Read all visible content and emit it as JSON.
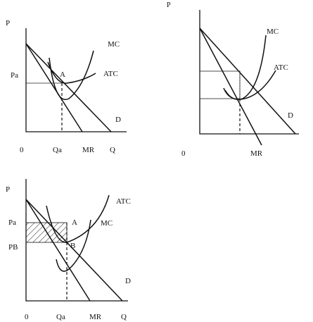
{
  "diagram1": {
    "y_axis": "P",
    "x_axis": "Q",
    "origin": "0",
    "price_label": "Pa",
    "quantity_label": "Qa",
    "point_label": "A",
    "curves": {
      "mc": "MC",
      "atc": "ATC",
      "demand": "D",
      "mr": "MR"
    }
  },
  "diagram2": {
    "y_axis": "P",
    "origin": "0",
    "curves": {
      "mc": "MC",
      "atc": "ATC",
      "demand": "D",
      "mr": "MR"
    }
  },
  "diagram3": {
    "y_axis": "P",
    "x_axis": "Q",
    "origin": "0",
    "price_a_label": "Pa",
    "price_b_label": "PB",
    "quantity_label": "Qa",
    "point_a_label": "A",
    "point_b_label": "B",
    "curves": {
      "mc": "MC",
      "atc": "ATC",
      "demand": "D",
      "mr": "MR"
    }
  }
}
